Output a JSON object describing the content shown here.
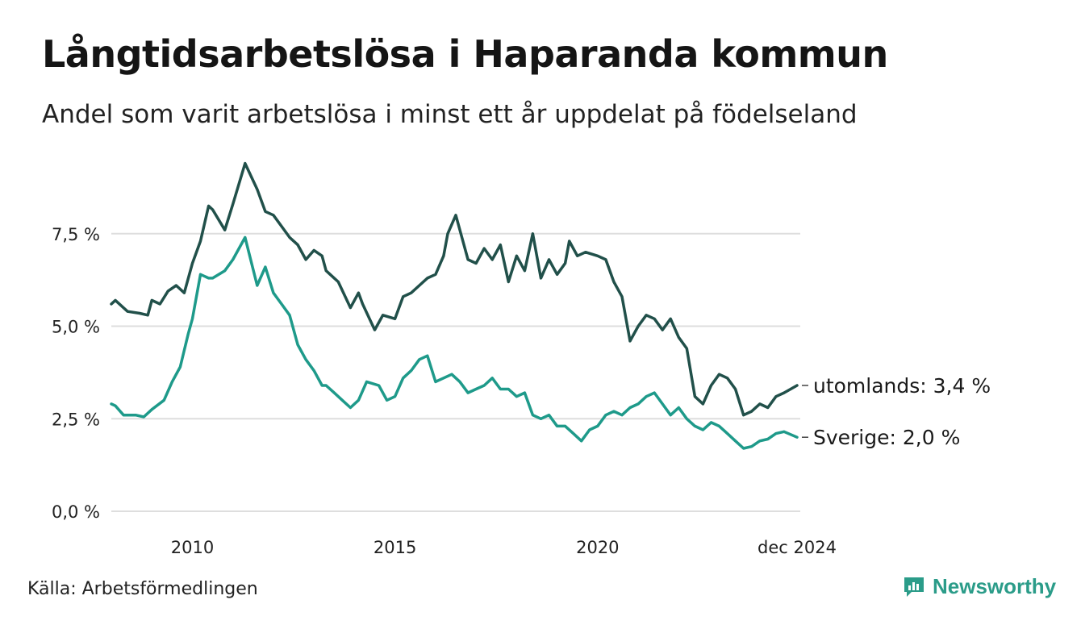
{
  "title": "Långtidsarbetslösa i Haparanda kommun",
  "subtitle": "Andel som varit arbetslösa i minst ett år uppdelat på födelseland",
  "source": "Källa: Arbetsförmedlingen",
  "brand": {
    "name": "Newsworthy",
    "icon": "newsworthy-chart-icon"
  },
  "colors": {
    "utomlands": "#21504a",
    "sverige": "#1e9a8a",
    "grid": "#dedede"
  },
  "chart_data": {
    "type": "line",
    "title": "Långtidsarbetslösa i Haparanda kommun",
    "xlabel": "",
    "ylabel": "",
    "ylim": [
      0,
      9.5
    ],
    "xlim": [
      2008.0,
      2025.0
    ],
    "grid": true,
    "y_ticks": [
      {
        "value": 0,
        "label": "0,0 %"
      },
      {
        "value": 2.5,
        "label": "2,5 %"
      },
      {
        "value": 5,
        "label": "5,0 %"
      },
      {
        "value": 7.5,
        "label": "7,5 %"
      }
    ],
    "x_ticks": [
      {
        "value": 2010.0,
        "label": "2010"
      },
      {
        "value": 2015.0,
        "label": "2015"
      },
      {
        "value": 2020.0,
        "label": "2020"
      },
      {
        "value": 2024.92,
        "label": "dec 2024"
      }
    ],
    "series": [
      {
        "name": "utomlands",
        "end_label": "utomlands: 3,4 %",
        "color": "#21504a",
        "x": [
          2008.0,
          2008.1,
          2008.4,
          2008.7,
          2008.9,
          2009.0,
          2009.2,
          2009.4,
          2009.6,
          2009.8,
          2010.0,
          2010.2,
          2010.4,
          2010.5,
          2010.8,
          2011.0,
          2011.3,
          2011.6,
          2011.8,
          2012.0,
          2012.2,
          2012.4,
          2012.6,
          2012.8,
          2013.0,
          2013.2,
          2013.3,
          2013.5,
          2013.6,
          2013.9,
          2014.1,
          2014.2,
          2014.5,
          2014.7,
          2015.0,
          2015.2,
          2015.4,
          2015.6,
          2015.8,
          2016.0,
          2016.2,
          2016.3,
          2016.5,
          2016.8,
          2017.0,
          2017.2,
          2017.4,
          2017.6,
          2017.8,
          2018.0,
          2018.2,
          2018.4,
          2018.6,
          2018.8,
          2019.0,
          2019.2,
          2019.3,
          2019.5,
          2019.7,
          2020.0,
          2020.2,
          2020.4,
          2020.6,
          2020.8,
          2021.0,
          2021.2,
          2021.4,
          2021.6,
          2021.8,
          2022.0,
          2022.2,
          2022.4,
          2022.6,
          2022.8,
          2023.0,
          2023.2,
          2023.4,
          2023.6,
          2023.8,
          2024.0,
          2024.2,
          2024.4,
          2024.6,
          2024.92
        ],
        "values": [
          5.6,
          5.7,
          5.4,
          5.35,
          5.3,
          5.7,
          5.6,
          5.95,
          6.1,
          5.9,
          6.7,
          7.3,
          8.25,
          8.15,
          7.6,
          8.3,
          9.4,
          8.7,
          8.1,
          8.0,
          7.7,
          7.4,
          7.2,
          6.8,
          7.05,
          6.9,
          6.5,
          6.3,
          6.2,
          5.5,
          5.9,
          5.6,
          4.9,
          5.3,
          5.2,
          5.8,
          5.9,
          6.1,
          6.3,
          6.4,
          6.9,
          7.5,
          8.0,
          6.8,
          6.7,
          7.1,
          6.8,
          7.2,
          6.2,
          6.9,
          6.5,
          7.5,
          6.3,
          6.8,
          6.4,
          6.7,
          7.3,
          6.9,
          7.0,
          6.9,
          6.8,
          6.2,
          5.8,
          4.6,
          5.0,
          5.3,
          5.2,
          4.9,
          5.2,
          4.7,
          4.4,
          3.1,
          2.9,
          3.4,
          3.7,
          3.6,
          3.3,
          2.6,
          2.7,
          2.9,
          2.8,
          3.1,
          3.2,
          3.4
        ]
      },
      {
        "name": "Sverige",
        "end_label": "Sverige: 2,0 %",
        "color": "#1e9a8a",
        "x": [
          2008.0,
          2008.1,
          2008.3,
          2008.6,
          2008.8,
          2009.0,
          2009.3,
          2009.5,
          2009.7,
          2009.9,
          2010.0,
          2010.2,
          2010.4,
          2010.5,
          2010.8,
          2011.0,
          2011.3,
          2011.6,
          2011.8,
          2012.0,
          2012.2,
          2012.4,
          2012.6,
          2012.8,
          2013.0,
          2013.2,
          2013.3,
          2013.5,
          2013.7,
          2013.9,
          2014.1,
          2014.3,
          2014.6,
          2014.8,
          2015.0,
          2015.2,
          2015.4,
          2015.6,
          2015.8,
          2016.0,
          2016.2,
          2016.4,
          2016.6,
          2016.8,
          2017.0,
          2017.2,
          2017.4,
          2017.6,
          2017.8,
          2018.0,
          2018.2,
          2018.4,
          2018.6,
          2018.8,
          2019.0,
          2019.2,
          2019.4,
          2019.6,
          2019.8,
          2020.0,
          2020.2,
          2020.4,
          2020.6,
          2020.8,
          2021.0,
          2021.2,
          2021.4,
          2021.6,
          2021.8,
          2022.0,
          2022.2,
          2022.4,
          2022.6,
          2022.8,
          2023.0,
          2023.2,
          2023.4,
          2023.6,
          2023.8,
          2024.0,
          2024.2,
          2024.4,
          2024.6,
          2024.92
        ],
        "values": [
          2.9,
          2.85,
          2.6,
          2.6,
          2.55,
          2.75,
          3.0,
          3.5,
          3.9,
          4.8,
          5.2,
          6.4,
          6.3,
          6.3,
          6.5,
          6.8,
          7.4,
          6.1,
          6.6,
          5.9,
          5.6,
          5.3,
          4.5,
          4.1,
          3.8,
          3.4,
          3.4,
          3.2,
          3.0,
          2.8,
          3.0,
          3.5,
          3.4,
          3.0,
          3.1,
          3.6,
          3.8,
          4.1,
          4.2,
          3.5,
          3.6,
          3.7,
          3.5,
          3.2,
          3.3,
          3.4,
          3.6,
          3.3,
          3.3,
          3.1,
          3.2,
          2.6,
          2.5,
          2.6,
          2.3,
          2.3,
          2.1,
          1.9,
          2.2,
          2.3,
          2.6,
          2.7,
          2.6,
          2.8,
          2.9,
          3.1,
          3.2,
          2.9,
          2.6,
          2.8,
          2.5,
          2.3,
          2.2,
          2.4,
          2.3,
          2.1,
          1.9,
          1.7,
          1.75,
          1.9,
          1.95,
          2.1,
          2.15,
          2.0
        ]
      }
    ]
  }
}
